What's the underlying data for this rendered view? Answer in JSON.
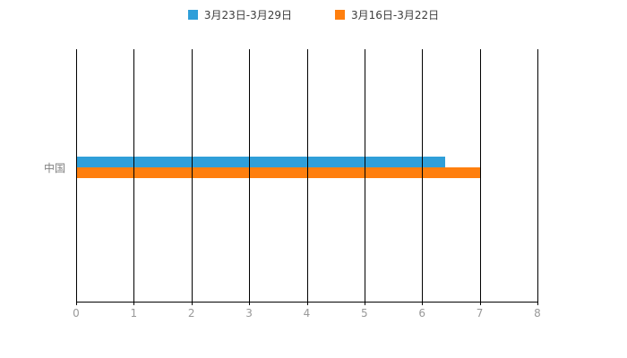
{
  "chart_data": {
    "type": "bar",
    "orientation": "horizontal",
    "title": "",
    "categories": [
      "中国"
    ],
    "series": [
      {
        "name": "3月23日-3月29日",
        "color": "#2F9FD9",
        "values": [
          6.4
        ]
      },
      {
        "name": "3月16日-3月22日",
        "color": "#FF7F0E",
        "values": [
          7.0
        ]
      }
    ],
    "xlim": [
      0,
      8
    ],
    "x_ticks": [
      "0",
      "1",
      "2",
      "3",
      "4",
      "5",
      "6",
      "7",
      "8"
    ],
    "grid": true,
    "gridline_color": "#000000",
    "tick_label_color": "#999999",
    "legend_position": "top"
  }
}
